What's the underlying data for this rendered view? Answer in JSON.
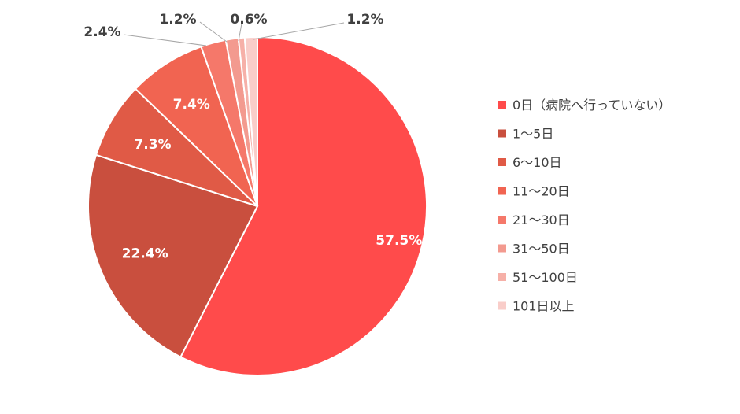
{
  "chart_data": {
    "type": "pie",
    "categories": [
      "0日（病院へ行っていない）",
      "1～5日",
      "6～10日",
      "11～20日",
      "21～30日",
      "31～50日",
      "51～100日",
      "101日以上"
    ],
    "values": [
      57.5,
      22.4,
      7.3,
      7.4,
      2.4,
      1.2,
      0.6,
      1.2
    ],
    "data_labels": [
      "57.5%",
      "22.4%",
      "7.3%",
      "7.4%",
      "2.4%",
      "1.2%",
      "0.6%",
      "1.2%"
    ],
    "colors": [
      "#ff4b4b",
      "#c94f3e",
      "#e05a46",
      "#f16451",
      "#f5786a",
      "#f39a8f",
      "#f6b0a8",
      "#f9cdc9"
    ],
    "label_colors": [
      "#ffffff",
      "#ffffff",
      "#ffffff",
      "#ffffff",
      "#404040",
      "#404040",
      "#404040",
      "#404040"
    ],
    "direction": "clockwise",
    "start": "top",
    "legend_position": "right",
    "title": ""
  }
}
